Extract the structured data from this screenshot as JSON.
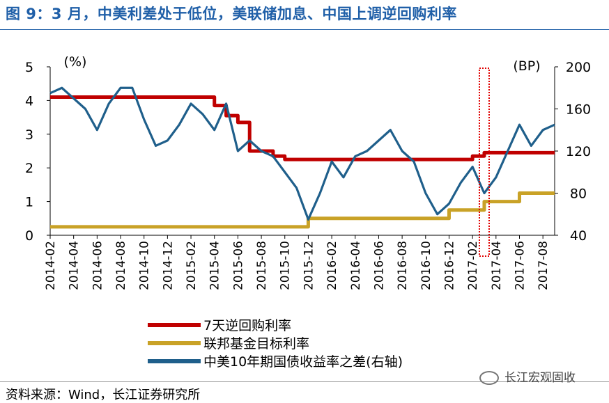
{
  "title": "图 9：3 月，中美利差处于低位，美联储加息、中国上调逆回购利率",
  "source": "资料来源：Wind，长江证券研究所",
  "watermark": "长江宏观固收",
  "chart_data": {
    "type": "line",
    "left_axis": {
      "unit": "(%)",
      "range": [
        0,
        5
      ],
      "ticks": [
        "0",
        "1",
        "2",
        "3",
        "4",
        "5"
      ]
    },
    "right_axis": {
      "unit": "(BP)",
      "range": [
        40,
        200
      ],
      "ticks": [
        "40",
        "80",
        "120",
        "160",
        "200"
      ]
    },
    "x_range": [
      "2014-02",
      "2017-09"
    ],
    "x_ticks": [
      "2014-02",
      "2014-04",
      "2014-06",
      "2014-08",
      "2014-10",
      "2014-12",
      "2015-02",
      "2015-04",
      "2015-06",
      "2015-08",
      "2015-10",
      "2015-12",
      "2016-02",
      "2016-04",
      "2016-06",
      "2016-08",
      "2016-10",
      "2016-12",
      "2017-02",
      "2017-04",
      "2017-06",
      "2017-08"
    ],
    "legend_position": "bottom",
    "grid": false,
    "highlight": {
      "style": "dotted red box",
      "x_range": [
        "2017-03",
        "2017-03"
      ]
    },
    "series": [
      {
        "name": "7天逆回购利率",
        "axis": "left",
        "color": "#c00000",
        "step": true,
        "points": [
          [
            "2014-02",
            4.1
          ],
          [
            "2015-03",
            4.1
          ],
          [
            "2015-04",
            3.85
          ],
          [
            "2015-05",
            3.55
          ],
          [
            "2015-06",
            3.35
          ],
          [
            "2015-07",
            2.5
          ],
          [
            "2015-09",
            2.35
          ],
          [
            "2015-10",
            2.25
          ],
          [
            "2017-02",
            2.35
          ],
          [
            "2017-03",
            2.45
          ],
          [
            "2017-09",
            2.45
          ]
        ]
      },
      {
        "name": "联邦基金目标利率",
        "axis": "left",
        "color": "#c9a227",
        "step": true,
        "points": [
          [
            "2014-02",
            0.25
          ],
          [
            "2015-12",
            0.25
          ],
          [
            "2015-12",
            0.5
          ],
          [
            "2016-12",
            0.5
          ],
          [
            "2016-12",
            0.75
          ],
          [
            "2017-03",
            0.75
          ],
          [
            "2017-03",
            1.0
          ],
          [
            "2017-06",
            1.0
          ],
          [
            "2017-06",
            1.25
          ],
          [
            "2017-09",
            1.25
          ]
        ]
      },
      {
        "name": "中美10年期国债收益率之差(右轴)",
        "axis": "right",
        "color": "#1f5f8b",
        "step": false,
        "points": [
          [
            "2014-02",
            175
          ],
          [
            "2014-03",
            180
          ],
          [
            "2014-04",
            170
          ],
          [
            "2014-05",
            160
          ],
          [
            "2014-06",
            140
          ],
          [
            "2014-07",
            165
          ],
          [
            "2014-08",
            180
          ],
          [
            "2014-09",
            180
          ],
          [
            "2014-10",
            150
          ],
          [
            "2014-11",
            125
          ],
          [
            "2014-12",
            130
          ],
          [
            "2015-01",
            145
          ],
          [
            "2015-02",
            165
          ],
          [
            "2015-03",
            155
          ],
          [
            "2015-04",
            140
          ],
          [
            "2015-05",
            165
          ],
          [
            "2015-06",
            120
          ],
          [
            "2015-07",
            130
          ],
          [
            "2015-08",
            120
          ],
          [
            "2015-09",
            115
          ],
          [
            "2015-10",
            100
          ],
          [
            "2015-11",
            85
          ],
          [
            "2015-12",
            55
          ],
          [
            "2016-01",
            80
          ],
          [
            "2016-02",
            110
          ],
          [
            "2016-03",
            95
          ],
          [
            "2016-04",
            115
          ],
          [
            "2016-05",
            120
          ],
          [
            "2016-06",
            130
          ],
          [
            "2016-07",
            140
          ],
          [
            "2016-08",
            120
          ],
          [
            "2016-09",
            110
          ],
          [
            "2016-10",
            80
          ],
          [
            "2016-11",
            60
          ],
          [
            "2016-12",
            70
          ],
          [
            "2017-01",
            90
          ],
          [
            "2017-02",
            105
          ],
          [
            "2017-03",
            80
          ],
          [
            "2017-04",
            95
          ],
          [
            "2017-05",
            120
          ],
          [
            "2017-06",
            145
          ],
          [
            "2017-07",
            125
          ],
          [
            "2017-08",
            140
          ],
          [
            "2017-09",
            145
          ]
        ]
      }
    ]
  }
}
